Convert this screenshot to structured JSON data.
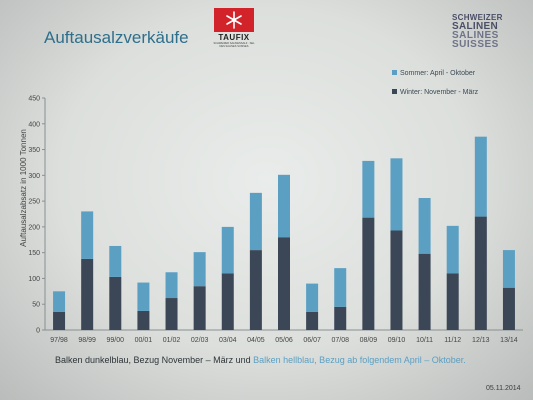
{
  "header": {
    "title": "Auftausalzverkäufe",
    "brand_name": "TAUFIX",
    "brand_sub": "SCHWEIZER SALINENSALZ · SEL DES SALINES SUISSES",
    "company_lines": [
      "SCHWEIZER",
      "SALINEN",
      "SALINES",
      "SUISSES"
    ]
  },
  "footer": {
    "caption_dark": "Balken dunkelblau, Bezug November – März und",
    "caption_light": "Balken hellblau, Bezug ab folgendem April – Oktober.",
    "date": "05.11.2014"
  },
  "colors": {
    "winter": "#3b4756",
    "sommer": "#5b9fc2",
    "axis": "#8a8f93",
    "grid": "#c9cccb",
    "title": "#2e6f8c"
  },
  "chart_data": {
    "type": "bar",
    "stacked": true,
    "categories": [
      "97/98",
      "98/99",
      "99/00",
      "00/01",
      "01/02",
      "02/03",
      "03/04",
      "04/05",
      "05/06",
      "06/07",
      "07/08",
      "08/09",
      "09/10",
      "10/11",
      "11/12",
      "12/13",
      "13/14"
    ],
    "series": [
      {
        "name": "Winter: November - März",
        "color": "#3b4756",
        "values": [
          35,
          138,
          103,
          37,
          62,
          85,
          110,
          155,
          180,
          35,
          45,
          218,
          193,
          148,
          110,
          220,
          82
        ]
      },
      {
        "name": "Sommer: April - Oktober",
        "color": "#5b9fc2",
        "values": [
          40,
          92,
          60,
          55,
          50,
          66,
          90,
          111,
          121,
          55,
          75,
          110,
          140,
          108,
          92,
          155,
          73
        ]
      }
    ],
    "ylabel": "Auftausalzabsatz in 1000 Tonnen",
    "ylim": [
      0,
      450
    ],
    "yticks": [
      0,
      50,
      100,
      150,
      200,
      250,
      300,
      350,
      400,
      450
    ],
    "grid": false,
    "legend_position": "top-right"
  }
}
